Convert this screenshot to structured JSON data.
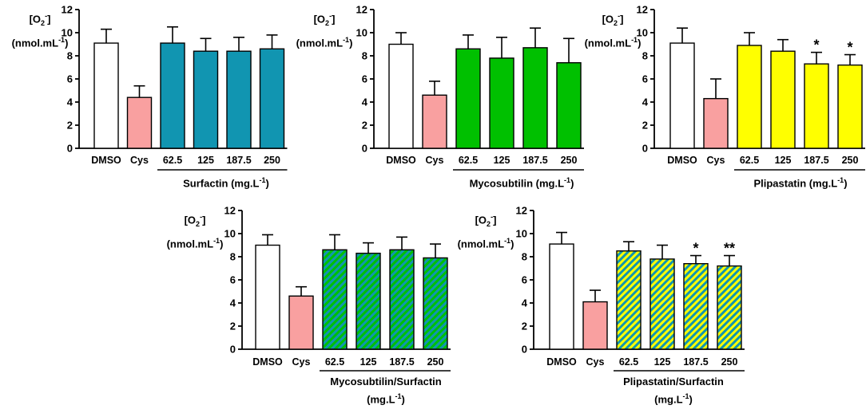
{
  "y_axis_label": {
    "species": "[O",
    "species_sub": "2",
    "species_sup": "-",
    "species_close": "]",
    "unit": "(nmol.mL",
    "unit_exp": "-1",
    "unit_close": ")"
  },
  "colors": {
    "dmso": "#ffffff",
    "cys": "#f9a0a0",
    "surfactin": "#1195b1",
    "mycosubtilin": "#00c000",
    "plipastatin": "#ffff00",
    "hatch_myco_fg": "#1195b1",
    "hatch_myco_bg": "#00c000",
    "hatch_plip_fg": "#1195b1",
    "hatch_plip_bg": "#ffff00"
  },
  "chart_data": [
    {
      "type": "bar",
      "id": "surfactin",
      "categories": [
        "DMSO",
        "Cys",
        "62.5",
        "125",
        "187.5",
        "250"
      ],
      "values": [
        9.1,
        4.4,
        9.1,
        8.4,
        8.4,
        8.6
      ],
      "errors": [
        1.2,
        1.0,
        1.4,
        1.1,
        1.2,
        1.2
      ],
      "significance": [
        "",
        "",
        "",
        "",
        "",
        ""
      ],
      "ylim": [
        0,
        12
      ],
      "yticks": [
        "0",
        "2",
        "4",
        "6",
        "8",
        "10",
        "12"
      ],
      "group_label": "Surfactin (mg.L",
      "group_label_exp": "-1",
      "group_label_close": ")",
      "fill": "surfactin"
    },
    {
      "type": "bar",
      "id": "mycosubtilin",
      "categories": [
        "DMSO",
        "Cys",
        "62.5",
        "125",
        "187.5",
        "250"
      ],
      "values": [
        9.0,
        4.6,
        8.6,
        7.8,
        8.7,
        7.4
      ],
      "errors": [
        1.0,
        1.2,
        1.2,
        1.8,
        1.7,
        2.1
      ],
      "significance": [
        "",
        "",
        "",
        "",
        "",
        ""
      ],
      "ylim": [
        0,
        12
      ],
      "yticks": [
        "0",
        "2",
        "4",
        "6",
        "8",
        "10",
        "12"
      ],
      "group_label": "Mycosubtilin (mg.L",
      "group_label_exp": "-1",
      "group_label_close": ")",
      "fill": "mycosubtilin"
    },
    {
      "type": "bar",
      "id": "plipastatin",
      "categories": [
        "DMSO",
        "Cys",
        "62.5",
        "125",
        "187.5",
        "250"
      ],
      "values": [
        9.1,
        4.3,
        8.9,
        8.4,
        7.3,
        7.2
      ],
      "errors": [
        1.3,
        1.7,
        1.1,
        1.0,
        1.0,
        0.9
      ],
      "significance": [
        "",
        "",
        "",
        "",
        "*",
        "*"
      ],
      "ylim": [
        0,
        12
      ],
      "yticks": [
        "0",
        "2",
        "4",
        "6",
        "8",
        "10",
        "12"
      ],
      "group_label": "Plipastatin (mg.L",
      "group_label_exp": "-1",
      "group_label_close": ")",
      "fill": "plipastatin"
    },
    {
      "type": "bar",
      "id": "mycosubtilin-surfactin",
      "categories": [
        "DMSO",
        "Cys",
        "62.5",
        "125",
        "187.5",
        "250"
      ],
      "values": [
        9.0,
        4.6,
        8.6,
        8.3,
        8.6,
        7.9
      ],
      "errors": [
        0.9,
        0.8,
        1.3,
        0.9,
        1.1,
        1.2
      ],
      "significance": [
        "",
        "",
        "",
        "",
        "",
        ""
      ],
      "ylim": [
        0,
        12
      ],
      "yticks": [
        "0",
        "2",
        "4",
        "6",
        "8",
        "10",
        "12"
      ],
      "group_label": "Mycosubtilin/Surfactin",
      "group_label_line2": "(mg.L",
      "group_label_exp": "-1",
      "group_label_close": ")",
      "fill": "hatch-myco"
    },
    {
      "type": "bar",
      "id": "plipastatin-surfactin",
      "categories": [
        "DMSO",
        "Cys",
        "62.5",
        "125",
        "187.5",
        "250"
      ],
      "values": [
        9.1,
        4.1,
        8.5,
        7.8,
        7.4,
        7.2
      ],
      "errors": [
        1.0,
        1.0,
        0.8,
        1.2,
        0.7,
        0.9
      ],
      "significance": [
        "",
        "",
        "",
        "",
        "*",
        "**"
      ],
      "ylim": [
        0,
        12
      ],
      "yticks": [
        "0",
        "2",
        "4",
        "6",
        "8",
        "10",
        "12"
      ],
      "group_label": "Plipastatin/Surfactin",
      "group_label_line2": "(mg.L",
      "group_label_exp": "-1",
      "group_label_close": ")",
      "fill": "hatch-plip"
    }
  ]
}
